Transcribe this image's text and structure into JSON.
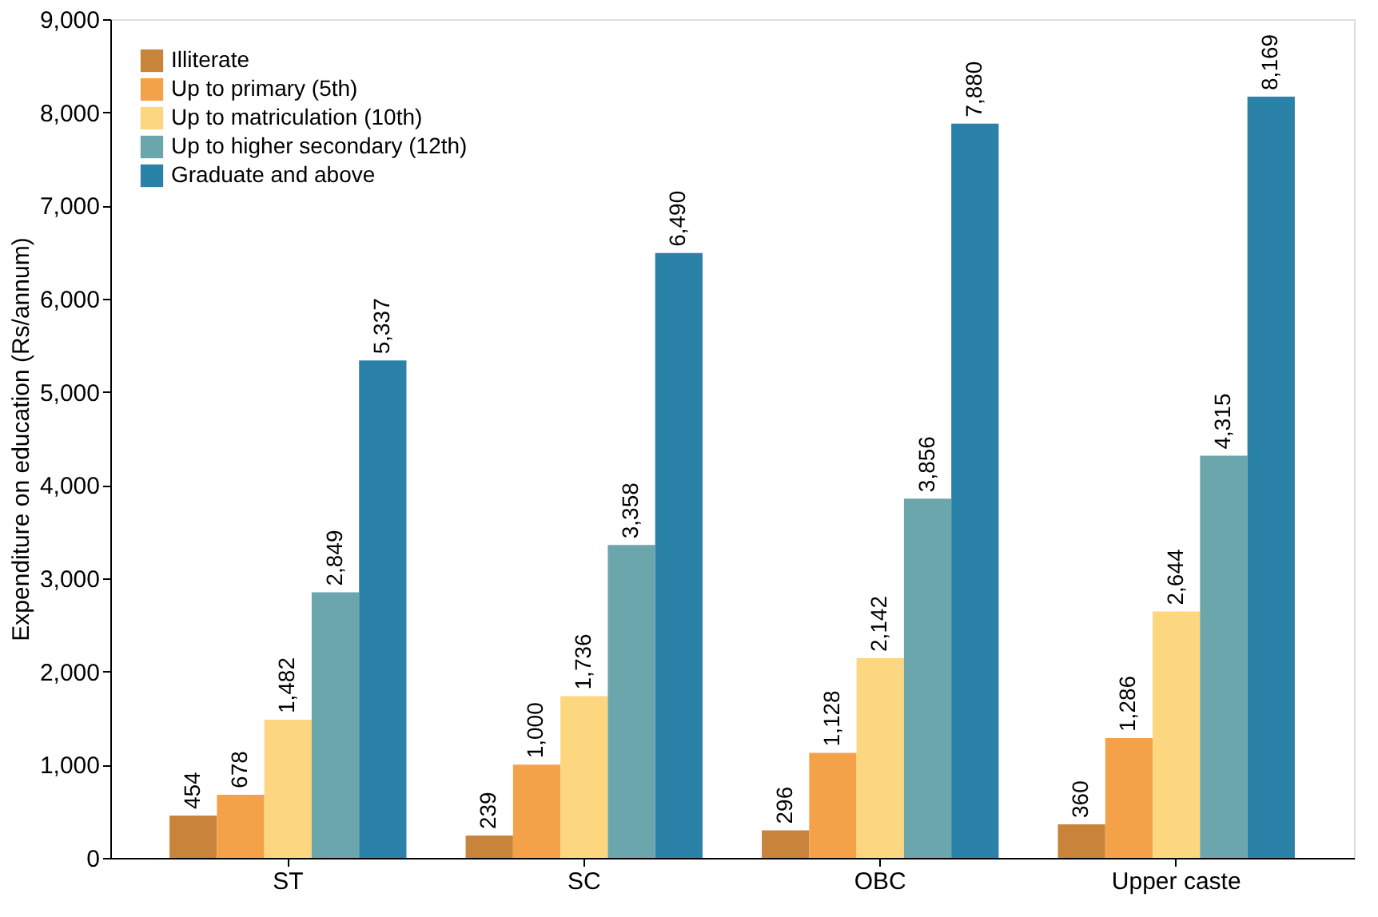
{
  "chart_data": {
    "type": "bar",
    "ylabel": "Expenditure on education (Rs/annum)",
    "categories": [
      "ST",
      "SC",
      "OBC",
      "Upper caste"
    ],
    "series": [
      {
        "name": "Illiterate",
        "color": "#c8843a",
        "values": [
          454,
          239,
          296,
          360
        ],
        "value_labels": [
          "454",
          "239",
          "296",
          "360"
        ]
      },
      {
        "name": "Up to primary (5th)",
        "color": "#f4a24a",
        "values": [
          678,
          1000,
          1128,
          1286
        ],
        "value_labels": [
          "678",
          "1,000",
          "1,128",
          "1,286"
        ]
      },
      {
        "name": "Up to matriculation (10th)",
        "color": "#fdd77f",
        "values": [
          1482,
          1736,
          2142,
          2644
        ],
        "value_labels": [
          "1,482",
          "1,736",
          "2,142",
          "2,644"
        ]
      },
      {
        "name": "Up to higher secondary (12th)",
        "color": "#6aa6ab",
        "values": [
          2849,
          3358,
          3856,
          4315
        ],
        "value_labels": [
          "2,849",
          "3,358",
          "3,856",
          "4,315"
        ]
      },
      {
        "name": "Graduate and above",
        "color": "#2b82a9",
        "values": [
          5337,
          6490,
          7880,
          8169
        ],
        "value_labels": [
          "5,337",
          "6,490",
          "7,880",
          "8,169"
        ]
      }
    ],
    "ylim": [
      0,
      9000
    ],
    "yticks": [
      0,
      {
        "value": 1000,
        "label": "1,000"
      },
      {
        "value": 2000,
        "label": "2,000"
      },
      {
        "value": 3000,
        "label": "3,000"
      },
      {
        "value": 4000,
        "label": "4,000"
      },
      {
        "value": 5000,
        "label": "5,000"
      },
      {
        "value": 6000,
        "label": "6,000"
      },
      {
        "value": 7000,
        "label": "7,000"
      },
      {
        "value": 8000,
        "label": "8,000"
      },
      {
        "value": 9000,
        "label": "9,000"
      }
    ],
    "legend": "top left",
    "grid": false
  }
}
